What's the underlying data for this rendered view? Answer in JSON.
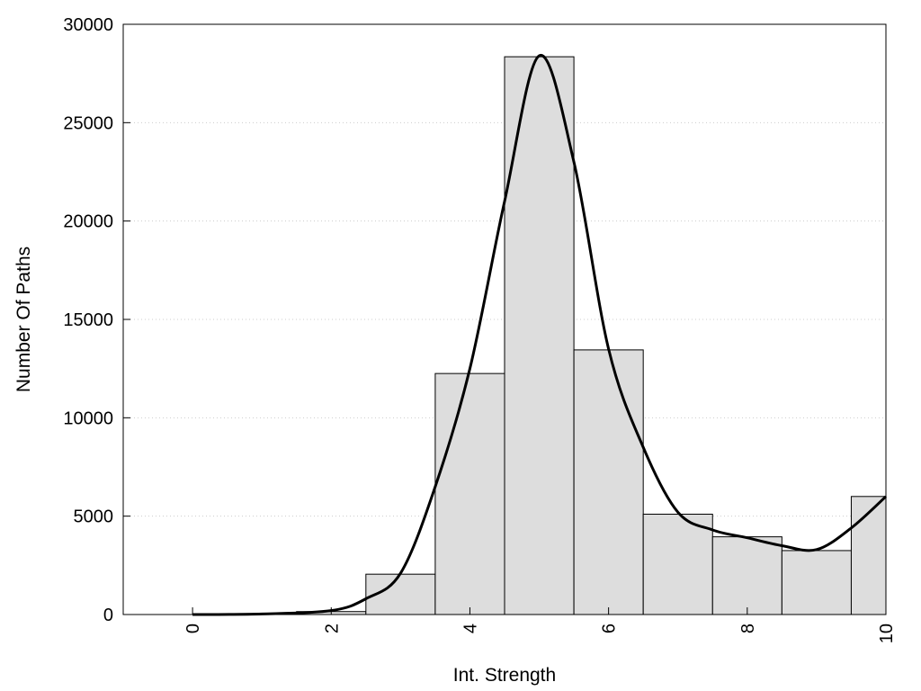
{
  "chart_data": {
    "type": "bar",
    "xlabel": "Int. Strength",
    "ylabel": "Number Of Paths",
    "xlim": [
      -1,
      10
    ],
    "ylim": [
      0,
      30000
    ],
    "x_ticks": [
      0,
      2,
      4,
      6,
      8,
      10
    ],
    "x_tick_labels": [
      "0",
      "2",
      "4",
      "6",
      "8",
      "10"
    ],
    "y_ticks": [
      0,
      5000,
      10000,
      15000,
      20000,
      25000,
      30000
    ],
    "y_tick_labels": [
      "0",
      "5000",
      "10000",
      "15000",
      "20000",
      "25000",
      "30000"
    ],
    "grid": "y-dotted",
    "bar_color": "#dddddd",
    "line_color": "#000000",
    "bars": [
      {
        "x": 0,
        "value": 0
      },
      {
        "x": 1,
        "value": 20
      },
      {
        "x": 2,
        "value": 150
      },
      {
        "x": 3,
        "value": 2050
      },
      {
        "x": 4,
        "value": 12250
      },
      {
        "x": 5,
        "value": 28350
      },
      {
        "x": 6,
        "value": 13450
      },
      {
        "x": 7,
        "value": 5100
      },
      {
        "x": 8,
        "value": 3950
      },
      {
        "x": 9,
        "value": 3250
      },
      {
        "x": 10,
        "value": 6000
      }
    ],
    "curve": {
      "x": [
        0,
        1,
        2,
        2.5,
        3,
        3.5,
        4,
        4.5,
        5,
        5.5,
        6,
        6.5,
        7,
        7.5,
        8,
        8.5,
        9,
        9.5,
        10
      ],
      "y": [
        0,
        30,
        200,
        800,
        2100,
        6500,
        12500,
        21000,
        28400,
        23000,
        13500,
        8500,
        5200,
        4300,
        3900,
        3500,
        3300,
        4400,
        6000
      ]
    }
  }
}
